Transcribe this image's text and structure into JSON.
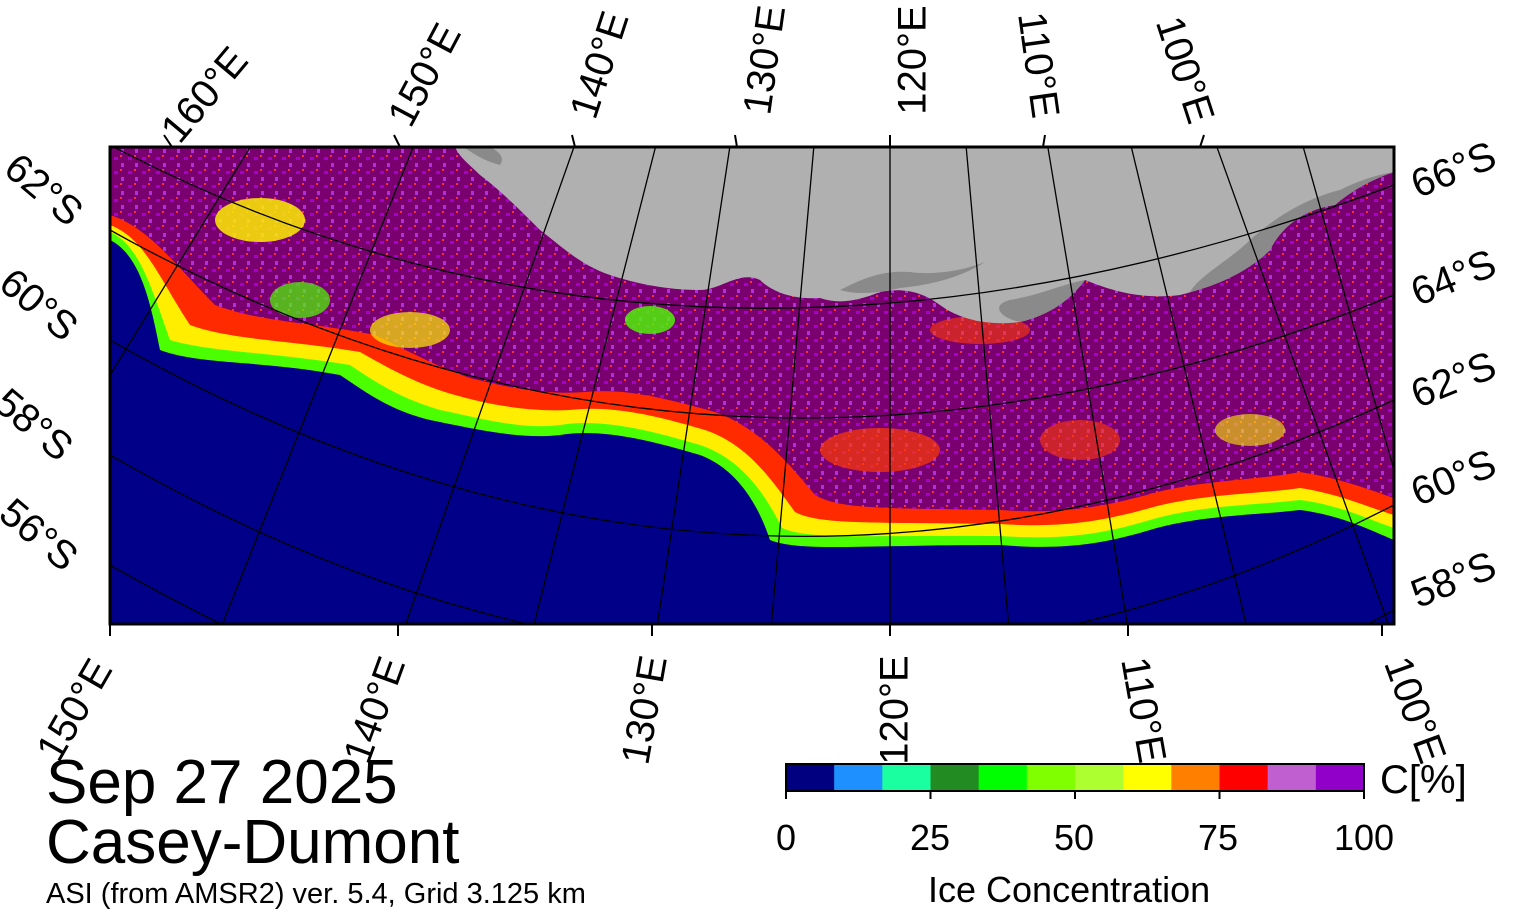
{
  "title": {
    "date": "Sep 27 2025",
    "region": "Casey-Dumont",
    "source": "ASI (from AMSR2) ver. 5.4,  Grid 3.125 km"
  },
  "map": {
    "projection": "polar stereographic (south)",
    "top_lon_labels": [
      "160°E",
      "150°E",
      "140°E",
      "130°E",
      "120°E",
      "110°E",
      "100°E"
    ],
    "bottom_lon_labels": [
      "150°E",
      "140°E",
      "130°E",
      "120°E",
      "110°E",
      "100°E"
    ],
    "left_lat_labels": [
      "62°S",
      "60°S",
      "58°S",
      "56°S"
    ],
    "right_lat_labels": [
      "66°S",
      "64°S",
      "62°S",
      "60°S",
      "58°S"
    ],
    "colors": {
      "ocean": "#000088",
      "land": "#b0b0b0",
      "ice_shelf": "#8c8c8c",
      "pack_ice": "#7a0070",
      "high_ice": "#a700d0",
      "edge_yellow": "#ffff00",
      "edge_green": "#5dff00",
      "edge_red": "#ff2000"
    }
  },
  "colorbar": {
    "title": "Ice Concentration",
    "unit": "C[%]",
    "ticks": [
      "0",
      "25",
      "50",
      "75",
      "100"
    ],
    "min": 0,
    "max": 100,
    "colors": [
      "#000080",
      "#1e90ff",
      "#1affa0",
      "#228b22",
      "#00ff00",
      "#7fff00",
      "#adff2f",
      "#ffff00",
      "#ff8000",
      "#ff0000",
      "#c060d0",
      "#9000c8"
    ]
  }
}
